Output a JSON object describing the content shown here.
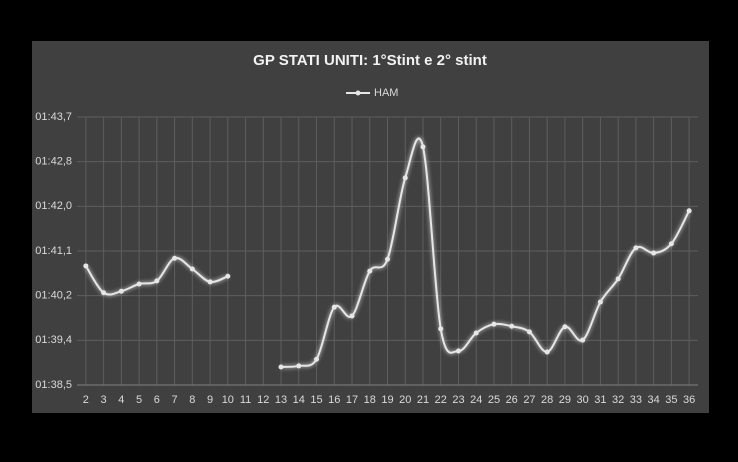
{
  "chart_data": {
    "type": "line",
    "title": "GP STATI UNITI: 1°Stint e 2° stint",
    "categories": [
      "2",
      "3",
      "4",
      "5",
      "6",
      "7",
      "8",
      "9",
      "10",
      "11",
      "12",
      "13",
      "14",
      "15",
      "16",
      "17",
      "18",
      "19",
      "20",
      "21",
      "22",
      "23",
      "24",
      "25",
      "26",
      "27",
      "28",
      "29",
      "30",
      "31",
      "32",
      "33",
      "34",
      "35",
      "36"
    ],
    "series": [
      {
        "name": "HAM",
        "color": "#e6e6e6",
        "values": [
          100.81,
          100.29,
          100.32,
          100.46,
          100.52,
          100.96,
          100.75,
          100.5,
          100.61,
          null,
          null,
          98.85,
          98.87,
          99.0,
          100.01,
          99.84,
          100.71,
          100.94,
          102.52,
          103.12,
          99.59,
          99.16,
          99.51,
          99.68,
          99.64,
          99.53,
          99.14,
          99.63,
          99.37,
          100.11,
          100.56,
          101.16,
          101.06,
          101.24,
          101.88
        ]
      }
    ],
    "ylim": [
      98.5,
      103.7
    ],
    "yticks": [
      {
        "value": 98.5,
        "label": "01:38,5"
      },
      {
        "value": 99.367,
        "label": "01:39,4"
      },
      {
        "value": 100.233,
        "label": "01:40,2"
      },
      {
        "value": 101.1,
        "label": "01:41,1"
      },
      {
        "value": 101.967,
        "label": "01:42,0"
      },
      {
        "value": 102.833,
        "label": "01:42,8"
      },
      {
        "value": 103.7,
        "label": "01:43,7"
      }
    ],
    "grid": true,
    "legend": "top"
  }
}
